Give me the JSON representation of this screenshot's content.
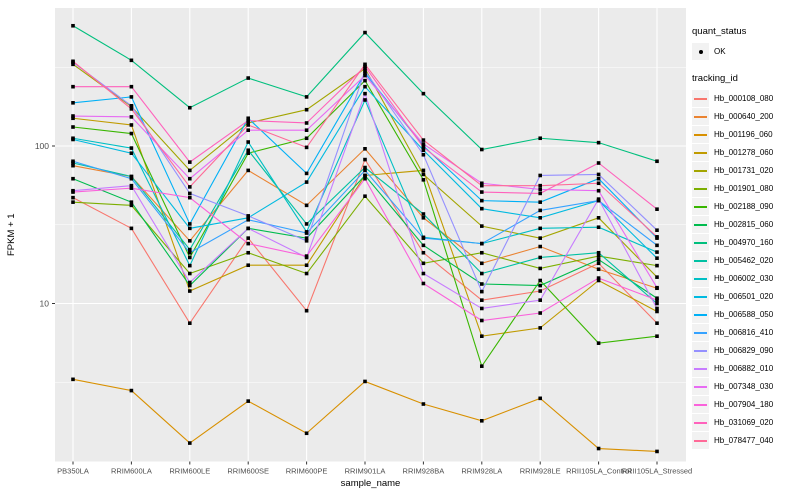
{
  "chart_data": {
    "type": "line",
    "xlabel": "sample_name",
    "ylabel": "FPKM + 1",
    "y_scale": "log10",
    "y_ticks": [
      10,
      100
    ],
    "y_minor_ticks": [
      3.162,
      31.62,
      316.2
    ],
    "ylim": [
      1,
      750
    ],
    "grid": true,
    "legend_position": "right",
    "point_marker": "black-square",
    "categories": [
      "PB350LA",
      "RRIM600LA",
      "RRIM600LE",
      "RRIM600SE",
      "RRIM600PE",
      "RRIM901LA",
      "RRIM928BA",
      "RRIM928LA",
      "RRIM928LE",
      "RRII105LA_Control",
      "RRII105LA_Stressed"
    ],
    "series": [
      {
        "name": "Hb_000108_080",
        "color": "#F8766D",
        "values": [
          47,
          30,
          7.5,
          26,
          9,
          82,
          21,
          10.5,
          12,
          18,
          7.5
        ]
      },
      {
        "name": "Hb_000640_200",
        "color": "#EA8331",
        "values": [
          75,
          64,
          25,
          70,
          42,
          96,
          35,
          18,
          23,
          16.5,
          12.5
        ]
      },
      {
        "name": "Hb_001196_060",
        "color": "#D89000",
        "values": [
          3.3,
          2.8,
          1.3,
          2.4,
          1.5,
          3.2,
          2.3,
          1.8,
          2.5,
          1.2,
          1.15
        ]
      },
      {
        "name": "Hb_001278_060",
        "color": "#C09B00",
        "values": [
          150,
          136,
          12,
          17.5,
          17.5,
          65,
          70,
          6.2,
          7,
          14,
          8.9
        ]
      },
      {
        "name": "Hb_001731_020",
        "color": "#A3A500",
        "values": [
          330,
          178,
          70,
          140,
          170,
          310,
          66,
          31,
          26,
          35,
          14.7
        ]
      },
      {
        "name": "Hb_001901_080",
        "color": "#7CAE00",
        "values": [
          44,
          42,
          15.5,
          21,
          15.5,
          48,
          18,
          21,
          16.7,
          20,
          17.4
        ]
      },
      {
        "name": "Hb_002188_090",
        "color": "#39B600",
        "values": [
          132,
          120,
          19.6,
          90,
          112,
          260,
          61,
          4.0,
          14,
          5.6,
          6.2
        ]
      },
      {
        "name": "Hb_002815_060",
        "color": "#00BB4E",
        "values": [
          62,
          44,
          13,
          30,
          26,
          65,
          23.4,
          13.3,
          13,
          19,
          10.8
        ]
      },
      {
        "name": "Hb_004970_160",
        "color": "#00BF7D",
        "values": [
          580,
          350,
          175,
          270,
          205,
          525,
          215,
          95,
          112,
          105,
          80
        ]
      },
      {
        "name": "Hb_005462_020",
        "color": "#00C1A3",
        "values": [
          78,
          64,
          22,
          94,
          32,
          73,
          37,
          15.5,
          19.6,
          21,
          10
        ]
      },
      {
        "name": "Hb_006002_030",
        "color": "#00BFC4",
        "values": [
          112,
          97,
          17.4,
          106,
          28.5,
          196,
          26.3,
          24,
          30,
          30.5,
          21.2
        ]
      },
      {
        "name": "Hb_006501_020",
        "color": "#00BAE0",
        "values": [
          110,
          90,
          30,
          35,
          59,
          238,
          94,
          40,
          35,
          45,
          19.4
        ]
      },
      {
        "name": "Hb_006588_050",
        "color": "#00B0F6",
        "values": [
          188,
          205,
          32,
          150,
          67,
          290,
          100,
          45,
          44,
          62,
          26
        ]
      },
      {
        "name": "Hb_006816_410",
        "color": "#35A2FF",
        "values": [
          80,
          62,
          21,
          34,
          28,
          70,
          26,
          24,
          39,
          45,
          23.4
        ]
      },
      {
        "name": "Hb_006829_090",
        "color": "#9590FF",
        "values": [
          340,
          180,
          50,
          36,
          25,
          300,
          88,
          11.9,
          65,
          66,
          29.2
        ]
      },
      {
        "name": "Hb_006882_010",
        "color": "#C77CFF",
        "values": [
          52,
          56,
          13.6,
          30,
          19.6,
          215,
          15.5,
          9.3,
          10.5,
          46,
          9.3
        ]
      },
      {
        "name": "Hb_007348_030",
        "color": "#E76BF3",
        "values": [
          155,
          153,
          62,
          126,
          126,
          280,
          103,
          58,
          53,
          52,
          12.6
        ]
      },
      {
        "name": "Hb_007904_180",
        "color": "#FA62DB",
        "values": [
          51,
          54,
          47,
          24,
          20,
          62,
          13.4,
          7.8,
          8.7,
          14.5,
          10.5
        ]
      },
      {
        "name": "Hb_031069_020",
        "color": "#FF62BC",
        "values": [
          238,
          238,
          79,
          145,
          140,
          320,
          98,
          51,
          50,
          78,
          39.7
        ]
      },
      {
        "name": "Hb_078477_040",
        "color": "#FF6A98",
        "values": [
          345,
          172,
          55,
          136,
          98,
          330,
          109,
          56,
          56,
          58,
          26.5
        ]
      }
    ]
  },
  "legend": {
    "quant_status_title": "quant_status",
    "quant_status_item": "OK",
    "tracking_id_title": "tracking_id"
  },
  "colors": {
    "panel_bg": "#EBEBEB",
    "grid": "#FFFFFF",
    "key_bg": "#F2F2F2",
    "point": "#000000",
    "axis_text": "#4D4D4D",
    "title_text": "#000000"
  }
}
